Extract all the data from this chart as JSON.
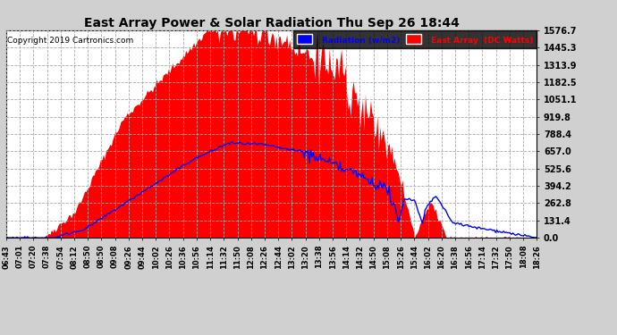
{
  "title": "East Array Power & Solar Radiation Thu Sep 26 18:44",
  "copyright": "Copyright 2019 Cartronics.com",
  "legend_labels": [
    "Radiation (w/m2)",
    "East Array  (DC Watts)"
  ],
  "legend_colors": [
    "blue",
    "red"
  ],
  "yticks": [
    0.0,
    131.4,
    262.8,
    394.2,
    525.6,
    657.0,
    788.4,
    919.8,
    1051.1,
    1182.5,
    1313.9,
    1445.3,
    1576.7
  ],
  "ymax": 1576.7,
  "fig_bg_color": "#d0d0d0",
  "plot_bg_color": "#ffffff",
  "grid_color": "#aaaaaa",
  "xtick_labels": [
    "06:43",
    "07:01",
    "07:20",
    "07:38",
    "07:54",
    "08:12",
    "08:50",
    "08:50",
    "09:08",
    "09:26",
    "09:44",
    "10:02",
    "10:26",
    "10:36",
    "10:56",
    "11:14",
    "11:32",
    "11:50",
    "12:08",
    "12:26",
    "12:44",
    "13:02",
    "13:20",
    "13:38",
    "13:56",
    "14:14",
    "14:32",
    "14:50",
    "15:08",
    "15:26",
    "15:44",
    "16:02",
    "16:20",
    "16:38",
    "16:56",
    "17:14",
    "17:32",
    "17:50",
    "18:08",
    "18:26"
  ],
  "east_array_shape": {
    "segments": [
      {
        "t0": 0.0,
        "t1": 0.07,
        "v0": 0,
        "v1": 0
      },
      {
        "t0": 0.07,
        "t1": 0.13,
        "v0": 0,
        "v1": 200
      },
      {
        "t0": 0.13,
        "t1": 0.22,
        "v0": 200,
        "v1": 900
      },
      {
        "t0": 0.22,
        "t1": 0.38,
        "v0": 900,
        "v1": 1576
      },
      {
        "t0": 0.38,
        "t1": 0.48,
        "v0": 1576,
        "v1": 1576
      },
      {
        "t0": 0.48,
        "t1": 0.62,
        "v0": 1576,
        "v1": 1300
      },
      {
        "t0": 0.62,
        "t1": 0.73,
        "v0": 1300,
        "v1": 650
      },
      {
        "t0": 0.73,
        "t1": 0.77,
        "v0": 650,
        "v1": 0
      },
      {
        "t0": 0.77,
        "t1": 0.8,
        "v0": 0,
        "v1": 280
      },
      {
        "t0": 0.8,
        "t1": 0.83,
        "v0": 280,
        "v1": 0
      },
      {
        "t0": 0.83,
        "t1": 1.0,
        "v0": 0,
        "v1": 0
      }
    ]
  },
  "radiation_shape": {
    "segments": [
      {
        "t0": 0.0,
        "t1": 0.09,
        "v0": 0,
        "v1": 0
      },
      {
        "t0": 0.09,
        "t1": 0.15,
        "v0": 0,
        "v1": 70
      },
      {
        "t0": 0.15,
        "t1": 0.2,
        "v0": 70,
        "v1": 200
      },
      {
        "t0": 0.2,
        "t1": 0.35,
        "v0": 200,
        "v1": 590
      },
      {
        "t0": 0.35,
        "t1": 0.42,
        "v0": 590,
        "v1": 720
      },
      {
        "t0": 0.42,
        "t1": 0.48,
        "v0": 720,
        "v1": 710
      },
      {
        "t0": 0.48,
        "t1": 0.56,
        "v0": 710,
        "v1": 650
      },
      {
        "t0": 0.56,
        "t1": 0.65,
        "v0": 650,
        "v1": 500
      },
      {
        "t0": 0.65,
        "t1": 0.72,
        "v0": 500,
        "v1": 370
      },
      {
        "t0": 0.72,
        "t1": 0.74,
        "v0": 370,
        "v1": 100
      },
      {
        "t0": 0.74,
        "t1": 0.75,
        "v0": 100,
        "v1": 300
      },
      {
        "t0": 0.75,
        "t1": 0.77,
        "v0": 300,
        "v1": 280
      },
      {
        "t0": 0.77,
        "t1": 0.785,
        "v0": 280,
        "v1": 100
      },
      {
        "t0": 0.785,
        "t1": 0.79,
        "v0": 100,
        "v1": 220
      },
      {
        "t0": 0.79,
        "t1": 0.81,
        "v0": 220,
        "v1": 320
      },
      {
        "t0": 0.81,
        "t1": 0.84,
        "v0": 320,
        "v1": 120
      },
      {
        "t0": 0.84,
        "t1": 0.88,
        "v0": 120,
        "v1": 80
      },
      {
        "t0": 0.88,
        "t1": 0.93,
        "v0": 80,
        "v1": 50
      },
      {
        "t0": 0.93,
        "t1": 0.97,
        "v0": 50,
        "v1": 20
      },
      {
        "t0": 0.97,
        "t1": 1.0,
        "v0": 20,
        "v1": 0
      }
    ]
  }
}
